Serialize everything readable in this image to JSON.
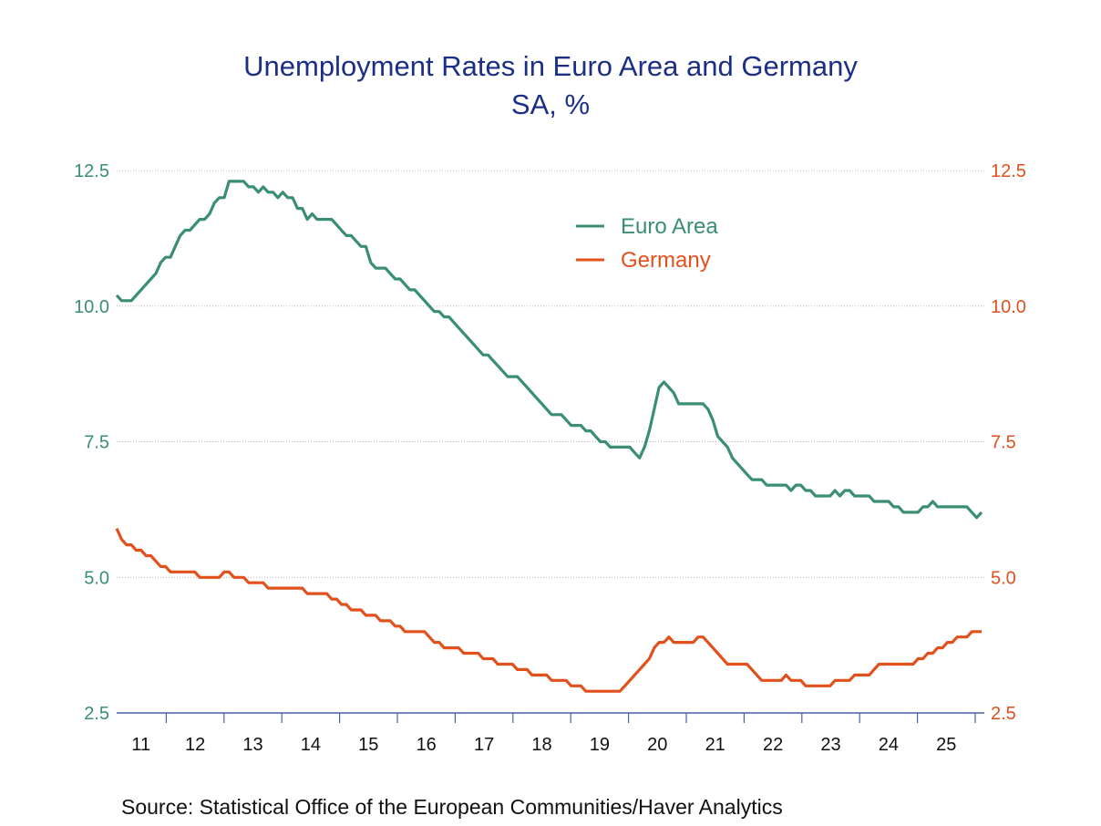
{
  "chart_data": {
    "type": "line",
    "title": "Unemployment Rates in Euro Area and Germany",
    "subtitle": "SA, %",
    "source": "Source:  Statistical Office of the European Communities/Haver Analytics",
    "frequency": "monthly",
    "start": "2011-01",
    "xlim": [
      2011,
      2026
    ],
    "x_tick_labels": [
      "11",
      "12",
      "13",
      "14",
      "15",
      "16",
      "17",
      "18",
      "19",
      "20",
      "21",
      "22",
      "23",
      "24",
      "25"
    ],
    "ylim_left": [
      2.5,
      12.5
    ],
    "ylim_right": [
      2.5,
      12.5
    ],
    "y_tick_labels": [
      "2.5",
      "5.0",
      "7.5",
      "10.0",
      "12.5"
    ],
    "grid": true,
    "legend_placement": "top-center",
    "colors": {
      "euro_area": "#3a8f72",
      "germany": "#e2501c",
      "title": "#1b2f86",
      "axis": "#4b5eb0"
    },
    "series": [
      {
        "name": "Euro Area",
        "axis": "left",
        "values": [
          10.2,
          10.1,
          10.1,
          10.1,
          10.2,
          10.3,
          10.4,
          10.5,
          10.6,
          10.8,
          10.9,
          10.9,
          11.1,
          11.3,
          11.4,
          11.4,
          11.5,
          11.6,
          11.6,
          11.7,
          11.9,
          12.0,
          12.0,
          12.3,
          12.3,
          12.3,
          12.3,
          12.2,
          12.2,
          12.1,
          12.2,
          12.1,
          12.1,
          12.0,
          12.1,
          12.0,
          12.0,
          11.8,
          11.8,
          11.6,
          11.7,
          11.6,
          11.6,
          11.6,
          11.6,
          11.5,
          11.4,
          11.3,
          11.3,
          11.2,
          11.1,
          11.1,
          10.8,
          10.7,
          10.7,
          10.7,
          10.6,
          10.5,
          10.5,
          10.4,
          10.3,
          10.3,
          10.2,
          10.1,
          10.0,
          9.9,
          9.9,
          9.8,
          9.8,
          9.7,
          9.6,
          9.5,
          9.4,
          9.3,
          9.2,
          9.1,
          9.1,
          9.0,
          8.9,
          8.8,
          8.7,
          8.7,
          8.7,
          8.6,
          8.5,
          8.4,
          8.3,
          8.2,
          8.1,
          8.0,
          8.0,
          8.0,
          7.9,
          7.8,
          7.8,
          7.8,
          7.7,
          7.7,
          7.6,
          7.5,
          7.5,
          7.4,
          7.4,
          7.4,
          7.4,
          7.4,
          7.3,
          7.2,
          7.4,
          7.7,
          8.1,
          8.5,
          8.6,
          8.5,
          8.4,
          8.2,
          8.2,
          8.2,
          8.2,
          8.2,
          8.2,
          8.1,
          7.9,
          7.6,
          7.5,
          7.4,
          7.2,
          7.1,
          7.0,
          6.9,
          6.8,
          6.8,
          6.8,
          6.7,
          6.7,
          6.7,
          6.7,
          6.7,
          6.6,
          6.7,
          6.7,
          6.6,
          6.6,
          6.5,
          6.5,
          6.5,
          6.5,
          6.6,
          6.5,
          6.6,
          6.6,
          6.5,
          6.5,
          6.5,
          6.5,
          6.4,
          6.4,
          6.4,
          6.4,
          6.3,
          6.3,
          6.2,
          6.2,
          6.2,
          6.2,
          6.3,
          6.3,
          6.4,
          6.3,
          6.3,
          6.3,
          6.3,
          6.3,
          6.3,
          6.3,
          6.2,
          6.1,
          6.2
        ]
      },
      {
        "name": "Germany",
        "axis": "right",
        "values": [
          5.9,
          5.7,
          5.6,
          5.6,
          5.5,
          5.5,
          5.4,
          5.4,
          5.3,
          5.2,
          5.2,
          5.1,
          5.1,
          5.1,
          5.1,
          5.1,
          5.1,
          5.0,
          5.0,
          5.0,
          5.0,
          5.0,
          5.1,
          5.1,
          5.0,
          5.0,
          5.0,
          4.9,
          4.9,
          4.9,
          4.9,
          4.8,
          4.8,
          4.8,
          4.8,
          4.8,
          4.8,
          4.8,
          4.8,
          4.7,
          4.7,
          4.7,
          4.7,
          4.7,
          4.6,
          4.6,
          4.5,
          4.5,
          4.4,
          4.4,
          4.4,
          4.3,
          4.3,
          4.3,
          4.2,
          4.2,
          4.2,
          4.1,
          4.1,
          4.0,
          4.0,
          4.0,
          4.0,
          4.0,
          3.9,
          3.8,
          3.8,
          3.7,
          3.7,
          3.7,
          3.7,
          3.6,
          3.6,
          3.6,
          3.6,
          3.5,
          3.5,
          3.5,
          3.4,
          3.4,
          3.4,
          3.4,
          3.3,
          3.3,
          3.3,
          3.2,
          3.2,
          3.2,
          3.2,
          3.1,
          3.1,
          3.1,
          3.1,
          3.0,
          3.0,
          3.0,
          2.9,
          2.9,
          2.9,
          2.9,
          2.9,
          2.9,
          2.9,
          2.9,
          3.0,
          3.1,
          3.2,
          3.3,
          3.4,
          3.5,
          3.7,
          3.8,
          3.8,
          3.9,
          3.8,
          3.8,
          3.8,
          3.8,
          3.8,
          3.9,
          3.9,
          3.8,
          3.7,
          3.6,
          3.5,
          3.4,
          3.4,
          3.4,
          3.4,
          3.4,
          3.3,
          3.2,
          3.1,
          3.1,
          3.1,
          3.1,
          3.1,
          3.2,
          3.1,
          3.1,
          3.1,
          3.0,
          3.0,
          3.0,
          3.0,
          3.0,
          3.0,
          3.1,
          3.1,
          3.1,
          3.1,
          3.2,
          3.2,
          3.2,
          3.2,
          3.3,
          3.4,
          3.4,
          3.4,
          3.4,
          3.4,
          3.4,
          3.4,
          3.4,
          3.5,
          3.5,
          3.6,
          3.6,
          3.7,
          3.7,
          3.8,
          3.8,
          3.9,
          3.9,
          3.9,
          4.0,
          4.0,
          4.0
        ]
      }
    ]
  }
}
